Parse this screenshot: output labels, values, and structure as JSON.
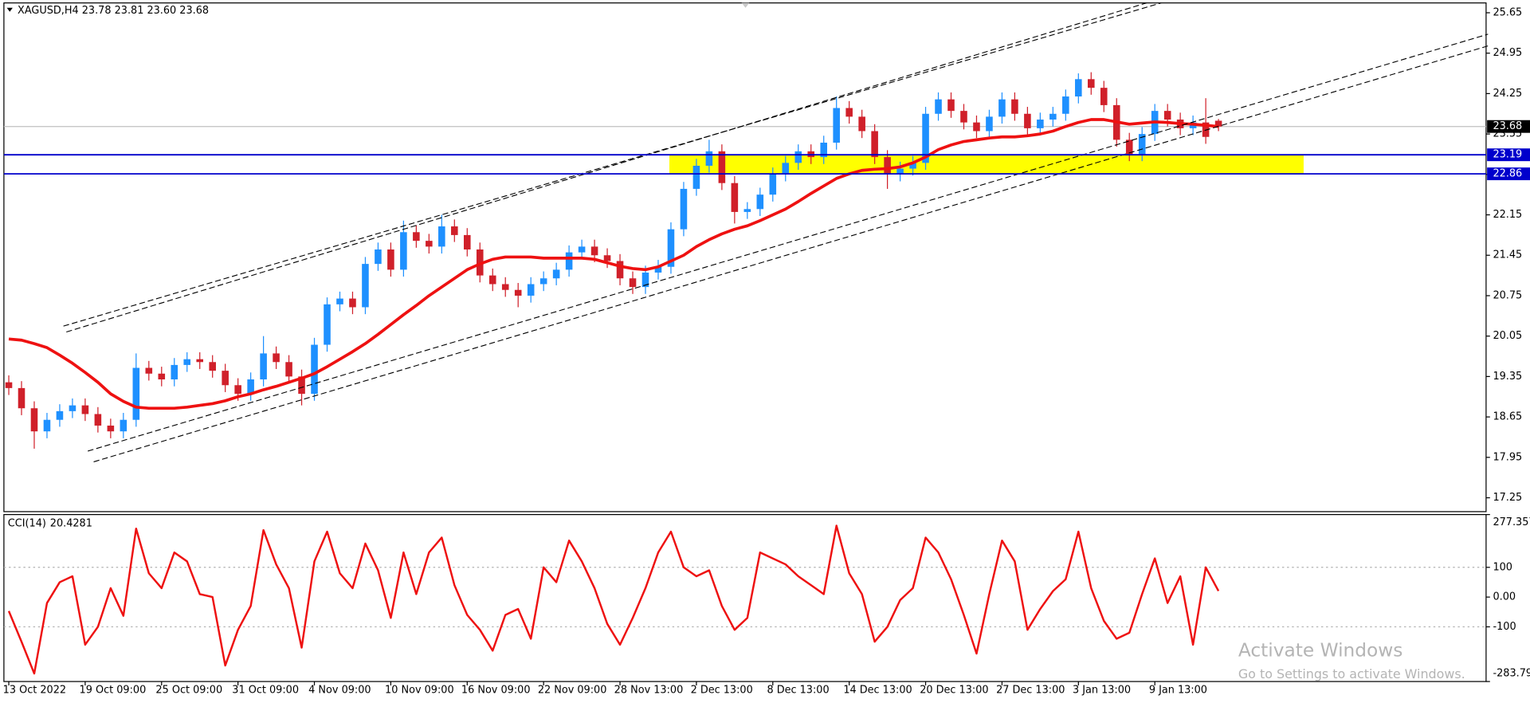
{
  "chart_data": [
    {
      "type": "candlestick",
      "title": "XAGUSD,H4  23.78 23.81 23.60 23.68",
      "categories": [
        "13 Oct 2022",
        null,
        null,
        null,
        null,
        null,
        "19 Oct 09:00",
        null,
        null,
        null,
        null,
        null,
        "25 Oct 09:00",
        null,
        null,
        null,
        null,
        null,
        "31 Oct 09:00",
        null,
        null,
        null,
        null,
        null,
        "4 Nov 09:00",
        null,
        null,
        null,
        null,
        null,
        "10 Nov 09:00",
        null,
        null,
        null,
        null,
        null,
        "16 Nov 09:00",
        null,
        null,
        null,
        null,
        null,
        "22 Nov 09:00",
        null,
        null,
        null,
        null,
        null,
        "28 Nov 13:00",
        null,
        null,
        null,
        null,
        null,
        "2 Dec 13:00",
        null,
        null,
        null,
        null,
        null,
        "8 Dec 13:00",
        null,
        null,
        null,
        null,
        null,
        "14 Dec 13:00",
        null,
        null,
        null,
        null,
        null,
        "20 Dec 13:00",
        null,
        null,
        null,
        null,
        null,
        "27 Dec 13:00",
        null,
        null,
        null,
        null,
        null,
        "3 Jan 13:00",
        null,
        null,
        null,
        null,
        null,
        "9 Jan 13:00",
        null,
        null,
        null,
        null,
        null
      ],
      "open": [
        19.25,
        19.15,
        18.8,
        18.4,
        18.6,
        18.75,
        18.85,
        18.7,
        18.5,
        18.4,
        18.6,
        19.5,
        19.4,
        19.3,
        19.55,
        19.65,
        19.6,
        19.45,
        19.2,
        19.05,
        19.3,
        19.75,
        19.6,
        19.35,
        19.05,
        19.9,
        20.6,
        20.7,
        20.55,
        21.3,
        21.55,
        21.2,
        21.85,
        21.7,
        21.6,
        21.95,
        21.8,
        21.55,
        21.1,
        20.95,
        20.85,
        20.75,
        20.95,
        21.05,
        21.2,
        21.5,
        21.6,
        21.45,
        21.35,
        21.05,
        20.9,
        21.15,
        21.25,
        21.9,
        22.6,
        23.0,
        23.25,
        22.7,
        22.2,
        22.25,
        22.5,
        22.85,
        23.05,
        23.25,
        23.15,
        23.4,
        24.0,
        23.85,
        23.6,
        23.15,
        22.85,
        22.95,
        23.05,
        23.9,
        24.15,
        23.95,
        23.75,
        23.6,
        23.85,
        24.15,
        23.9,
        23.65,
        23.8,
        23.9,
        24.2,
        24.5,
        24.35,
        24.05,
        23.45,
        23.2,
        23.55,
        23.95,
        23.8,
        23.65,
        23.75,
        23.78
      ],
      "high": [
        19.37,
        19.27,
        18.92,
        18.72,
        18.87,
        18.97,
        18.97,
        18.82,
        18.62,
        18.72,
        19.75,
        19.62,
        19.52,
        19.67,
        19.77,
        19.77,
        19.72,
        19.57,
        19.32,
        19.42,
        20.05,
        19.87,
        19.72,
        19.47,
        20.02,
        20.72,
        20.82,
        20.82,
        21.42,
        21.67,
        21.67,
        22.05,
        21.97,
        21.82,
        22.15,
        22.07,
        21.92,
        21.67,
        21.22,
        21.07,
        20.97,
        21.07,
        21.17,
        21.32,
        21.62,
        21.72,
        21.72,
        21.57,
        21.47,
        21.17,
        21.27,
        21.37,
        22.02,
        22.72,
        23.12,
        23.45,
        23.37,
        22.82,
        22.37,
        22.62,
        22.97,
        23.17,
        23.37,
        23.37,
        23.52,
        24.2,
        24.12,
        23.97,
        23.72,
        23.27,
        23.07,
        23.17,
        24.02,
        24.27,
        24.27,
        24.07,
        23.87,
        23.97,
        24.27,
        24.27,
        24.02,
        23.92,
        24.02,
        24.32,
        24.6,
        24.62,
        24.47,
        24.17,
        23.57,
        23.67,
        24.07,
        24.07,
        23.92,
        23.87,
        24.17,
        23.81
      ],
      "low": [
        19.03,
        18.68,
        18.1,
        18.28,
        18.48,
        18.63,
        18.58,
        18.38,
        18.28,
        18.28,
        18.48,
        19.28,
        19.18,
        19.18,
        19.43,
        19.48,
        19.33,
        19.08,
        18.93,
        18.93,
        19.18,
        19.48,
        19.23,
        18.85,
        18.93,
        19.78,
        20.48,
        20.43,
        20.43,
        21.18,
        21.08,
        21.08,
        21.58,
        21.48,
        21.48,
        21.68,
        21.43,
        20.98,
        20.83,
        20.73,
        20.55,
        20.63,
        20.83,
        20.93,
        21.08,
        21.38,
        21.33,
        21.23,
        20.93,
        20.78,
        20.78,
        21.03,
        21.13,
        21.78,
        22.48,
        22.88,
        22.58,
        22.0,
        22.08,
        22.13,
        22.38,
        22.73,
        22.93,
        23.03,
        23.03,
        23.28,
        23.73,
        23.48,
        23.03,
        22.6,
        22.73,
        22.83,
        22.93,
        23.78,
        23.83,
        23.63,
        23.48,
        23.48,
        23.73,
        23.78,
        23.53,
        23.53,
        23.68,
        23.78,
        24.08,
        24.23,
        23.93,
        23.33,
        23.08,
        23.08,
        23.43,
        23.68,
        23.53,
        23.53,
        23.38,
        23.6
      ],
      "close": [
        19.15,
        18.8,
        18.4,
        18.6,
        18.75,
        18.85,
        18.7,
        18.5,
        18.4,
        18.6,
        19.5,
        19.4,
        19.3,
        19.55,
        19.65,
        19.6,
        19.45,
        19.2,
        19.05,
        19.3,
        19.75,
        19.6,
        19.35,
        19.05,
        19.9,
        20.6,
        20.7,
        20.55,
        21.3,
        21.55,
        21.2,
        21.85,
        21.7,
        21.6,
        21.95,
        21.8,
        21.55,
        21.1,
        20.95,
        20.85,
        20.75,
        20.95,
        21.05,
        21.2,
        21.5,
        21.6,
        21.45,
        21.35,
        21.05,
        20.9,
        21.15,
        21.25,
        21.9,
        22.6,
        23.0,
        23.25,
        22.7,
        22.2,
        22.25,
        22.5,
        22.85,
        23.05,
        23.25,
        23.15,
        23.4,
        24.0,
        23.85,
        23.6,
        23.15,
        22.85,
        22.95,
        23.05,
        23.9,
        24.15,
        23.95,
        23.75,
        23.6,
        23.85,
        24.15,
        23.9,
        23.65,
        23.8,
        23.9,
        24.2,
        24.5,
        24.35,
        24.05,
        23.45,
        23.2,
        23.55,
        23.95,
        23.8,
        23.65,
        23.75,
        23.5,
        23.68
      ],
      "up_color": "#1e90ff",
      "down_color": "#d0202a",
      "moving_average": {
        "color": "#ee1111",
        "values": [
          20.0,
          19.98,
          19.92,
          19.85,
          19.72,
          19.58,
          19.42,
          19.25,
          19.05,
          18.92,
          18.82,
          18.8,
          18.8,
          18.8,
          18.82,
          18.85,
          18.88,
          18.93,
          19.0,
          19.05,
          19.12,
          19.18,
          19.25,
          19.32,
          19.4,
          19.52,
          19.65,
          19.78,
          19.92,
          20.08,
          20.25,
          20.42,
          20.58,
          20.75,
          20.9,
          21.05,
          21.2,
          21.3,
          21.38,
          21.42,
          21.42,
          21.42,
          21.4,
          21.4,
          21.4,
          21.4,
          21.38,
          21.32,
          21.26,
          21.22,
          21.2,
          21.25,
          21.35,
          21.45,
          21.6,
          21.72,
          21.82,
          21.9,
          21.96,
          22.05,
          22.15,
          22.25,
          22.38,
          22.52,
          22.65,
          22.78,
          22.86,
          22.92,
          22.94,
          22.95,
          22.98,
          23.05,
          23.15,
          23.28,
          23.36,
          23.42,
          23.45,
          23.48,
          23.5,
          23.5,
          23.52,
          23.55,
          23.6,
          23.68,
          23.75,
          23.8,
          23.8,
          23.76,
          23.72,
          23.74,
          23.76,
          23.75,
          23.73,
          23.72,
          23.7,
          23.68
        ]
      },
      "levels": [
        {
          "value": 23.19,
          "color": "#0000cc"
        },
        {
          "value": 22.86,
          "color": "#0000cc"
        }
      ],
      "zone_color": "#ffff00",
      "last_price_color": "#c0c0c0",
      "ylim": [
        17.01,
        25.82
      ],
      "yticks": [
        25.65,
        24.95,
        24.25,
        23.55,
        22.85,
        22.15,
        21.45,
        20.75,
        20.05,
        19.35,
        18.65,
        17.95,
        17.25
      ]
    },
    {
      "type": "line",
      "title": "CCI(14)",
      "series": [
        {
          "color": "#ee1111",
          "values": [
            -47,
            -150,
            -257,
            -20,
            50,
            70,
            -160,
            -100,
            30,
            -63,
            230,
            80,
            30,
            150,
            120,
            10,
            0,
            -230,
            -110,
            -30,
            225,
            110,
            30,
            -170,
            120,
            220,
            80,
            30,
            180,
            90,
            -70,
            150,
            10,
            150,
            200,
            40,
            -60,
            -110,
            -180,
            -60,
            -40,
            -140,
            100,
            50,
            190,
            120,
            30,
            -90,
            -160,
            -70,
            30,
            150,
            220,
            100,
            70,
            90,
            -30,
            -110,
            -70,
            150,
            130,
            110,
            70,
            40,
            10,
            240,
            80,
            10,
            -150,
            -100,
            -10,
            30,
            200,
            150,
            60,
            -60,
            -190,
            10,
            190,
            120,
            -110,
            -40,
            20,
            60,
            220,
            30,
            -80,
            -140,
            -120,
            10,
            130,
            -20,
            70,
            -160,
            100,
            20.4281
          ]
        }
      ],
      "levels": [
        100,
        -100
      ],
      "ylim": [
        -283.796,
        277.357
      ],
      "yticks": [
        277.357,
        100,
        {
          "value": 0,
          "label": "0.00"
        },
        -100,
        -283.796
      ]
    }
  ],
  "overlay": {
    "title": "Activate Windows",
    "subtitle": "Go to Settings to activate Windows."
  }
}
